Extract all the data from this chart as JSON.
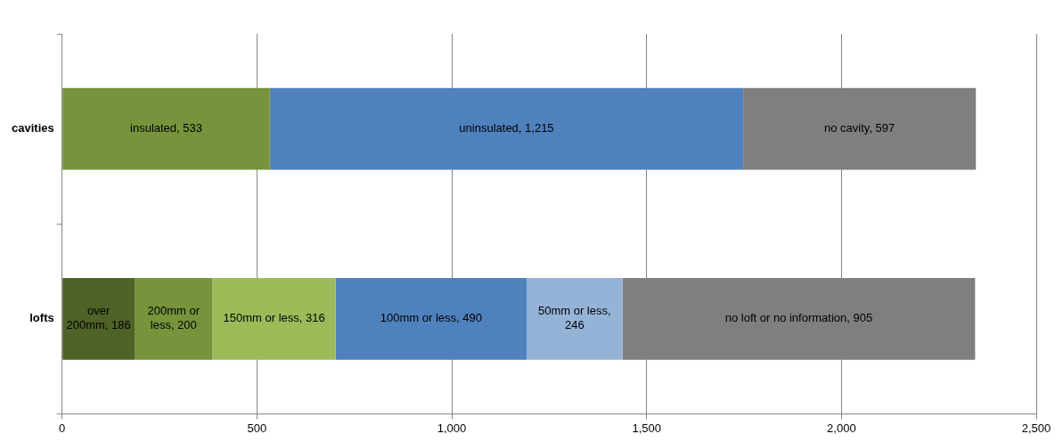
{
  "chart_data": {
    "type": "bar",
    "orientation": "horizontal",
    "stacked": true,
    "categories": [
      "cavities",
      "lofts"
    ],
    "series": [
      {
        "colors": [
          "#77933c",
          "#4f6228"
        ],
        "values": [
          533,
          186
        ],
        "value_labels": [
          "insulated, 533",
          "over 200mm, 186"
        ]
      },
      {
        "colors": [
          "#4f81bd",
          "#77933c"
        ],
        "values": [
          1215,
          200
        ],
        "value_labels": [
          "uninsulated, 1,215",
          "200mm or less, 200"
        ]
      },
      {
        "colors": [
          "#7f7f7f",
          "#9bbb59"
        ],
        "values": [
          597,
          316
        ],
        "value_labels": [
          "no cavity, 597",
          "150mm or less, 316"
        ]
      },
      {
        "colors": [
          "#4f81bd",
          "#4f81bd"
        ],
        "values": [
          null,
          490
        ],
        "value_labels": [
          null,
          "100mm or less, 490"
        ]
      },
      {
        "colors": [
          "#95b3d7",
          "#95b3d7"
        ],
        "values": [
          null,
          246
        ],
        "value_labels": [
          null,
          "50mm or less, 246"
        ]
      },
      {
        "colors": [
          "#7f7f7f",
          "#7f7f7f"
        ],
        "values": [
          null,
          905
        ],
        "value_labels": [
          null,
          "no loft or no information, 905"
        ]
      }
    ],
    "xlim": [
      0,
      2500
    ],
    "xticks": [
      0,
      500,
      {
        "value": 1000,
        "label": "1,000"
      },
      {
        "value": 1500,
        "label": "1,500"
      },
      {
        "value": 2000,
        "label": "2,000"
      },
      {
        "value": 2500,
        "label": "2,500"
      }
    ],
    "grid": "x",
    "legend": false
  }
}
